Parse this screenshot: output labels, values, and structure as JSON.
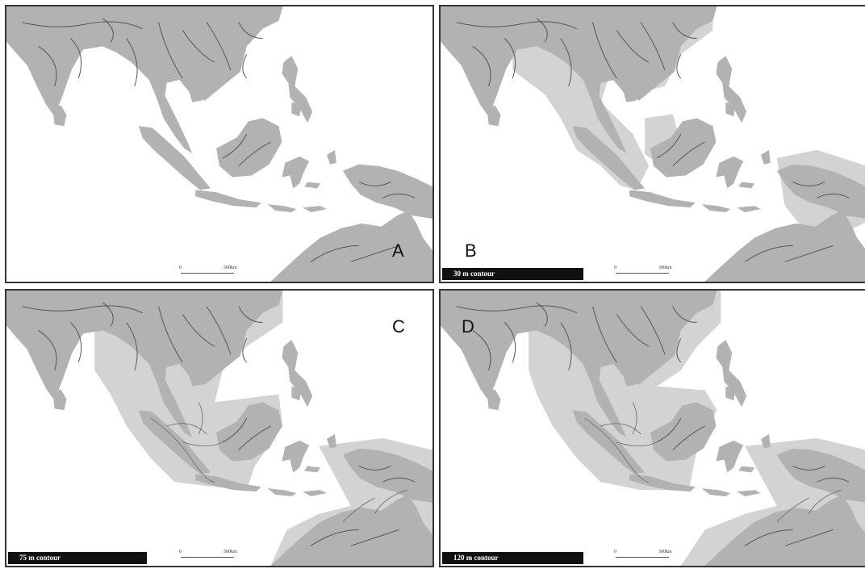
{
  "colors": {
    "land": "#b2b2b2",
    "shelf": "#d3d3d3",
    "river": "#555555",
    "border": "#333333"
  },
  "panels": [
    {
      "letter": "A",
      "contour_label": "",
      "scale": {
        "zero": "0",
        "dist": "500km"
      }
    },
    {
      "letter": "B",
      "contour_label": "30 m contour",
      "scale": {
        "zero": "0",
        "dist": "500km"
      }
    },
    {
      "letter": "C",
      "contour_label": "75 m contour",
      "scale": {
        "zero": "0",
        "dist": "500km"
      }
    },
    {
      "letter": "D",
      "contour_label": "120 m contour",
      "scale": {
        "zero": "0",
        "dist": "500km"
      }
    }
  ]
}
